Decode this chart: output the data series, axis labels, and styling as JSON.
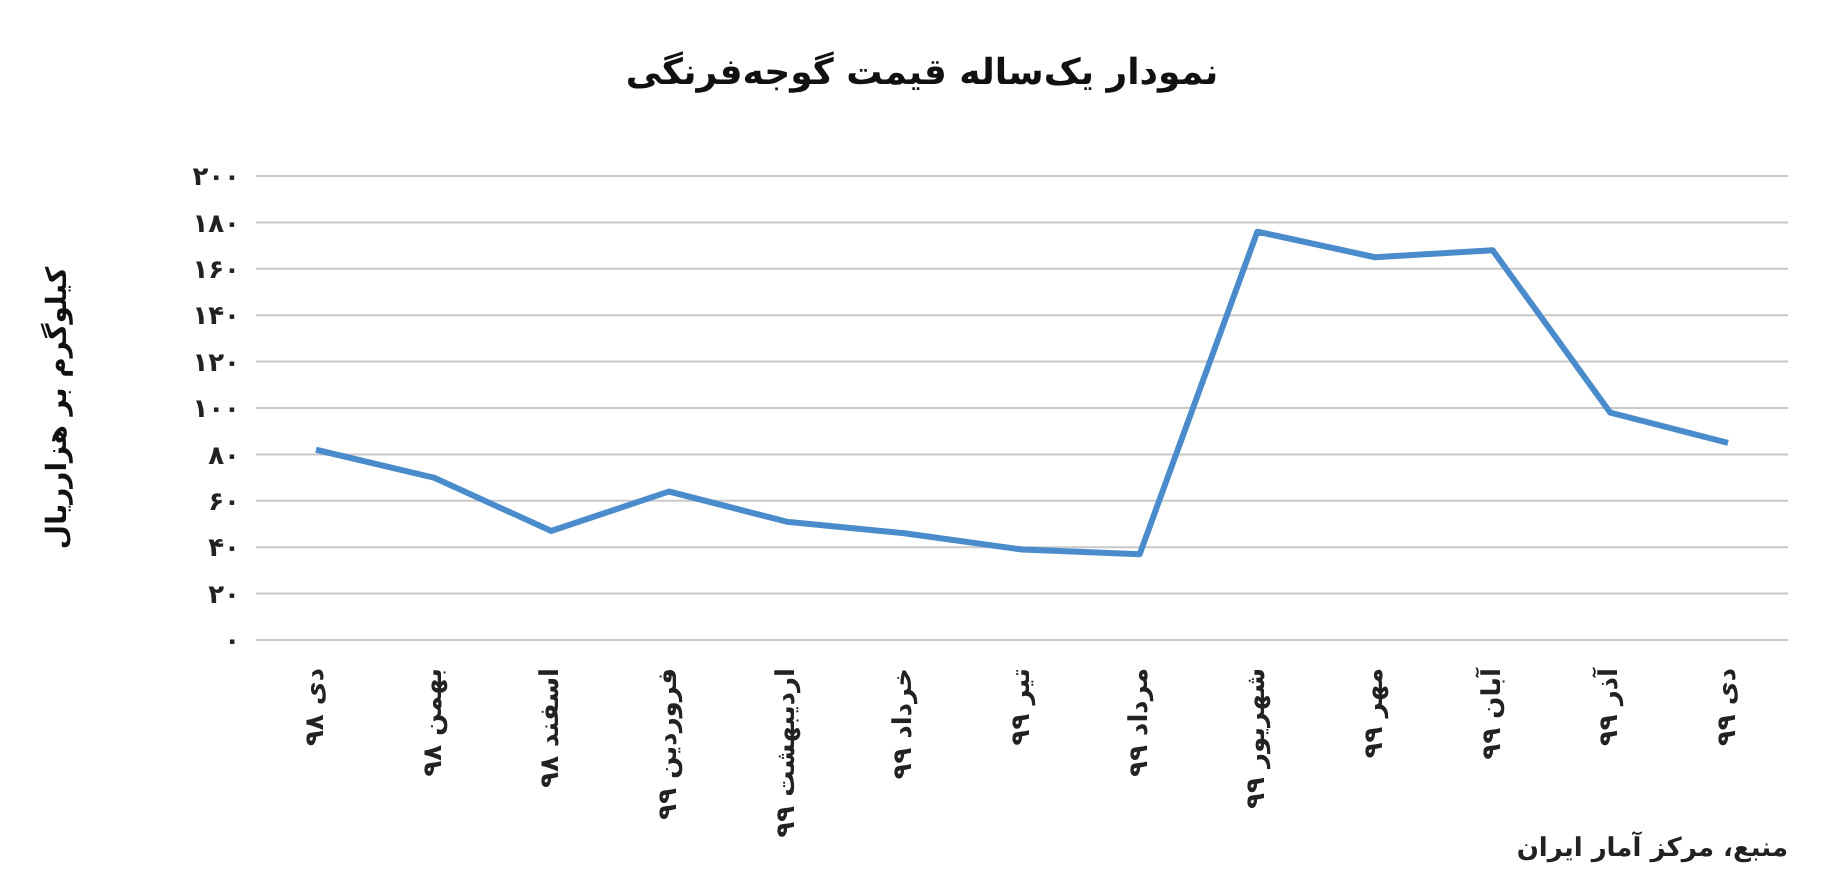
{
  "chart_data": {
    "type": "line",
    "title": "نمودار یک‌ساله قیمت گوجه‌فرنگی",
    "ylabel": "کیلوگرم بر هزارریال",
    "categories": [
      "دی ۹۸",
      "بهمن ۹۸",
      "اسفند ۹۸",
      "فروردین ۹۹",
      "اردیبهشت ۹۹",
      "خرداد ۹۹",
      "تیر ۹۹",
      "مرداد ۹۹",
      "شهریور ۹۹",
      "مهر ۹۹",
      "آبان ۹۹",
      "آذر ۹۹",
      "دی ۹۹"
    ],
    "series": [
      {
        "color": "#4a8ccb",
        "values": [
          82,
          70,
          47,
          64,
          51,
          46,
          39,
          37,
          176,
          165,
          168,
          98,
          85
        ]
      }
    ],
    "ylim": [
      0,
      200
    ],
    "yticks": [
      {
        "value": 0,
        "label": "۰"
      },
      {
        "value": 20,
        "label": "۲۰"
      },
      {
        "value": 40,
        "label": "۴۰"
      },
      {
        "value": 60,
        "label": "۶۰"
      },
      {
        "value": 80,
        "label": "۸۰"
      },
      {
        "value": 100,
        "label": "۱۰۰"
      },
      {
        "value": 120,
        "label": "۱۲۰"
      },
      {
        "value": 140,
        "label": "۱۴۰"
      },
      {
        "value": 160,
        "label": "۱۶۰"
      },
      {
        "value": 180,
        "label": "۱۸۰"
      },
      {
        "value": 200,
        "label": "۲۰۰"
      }
    ],
    "grid": "y",
    "marker": "none",
    "line_style": "solid",
    "annotations": [
      "منبع، مرکز آمار ایران"
    ]
  }
}
